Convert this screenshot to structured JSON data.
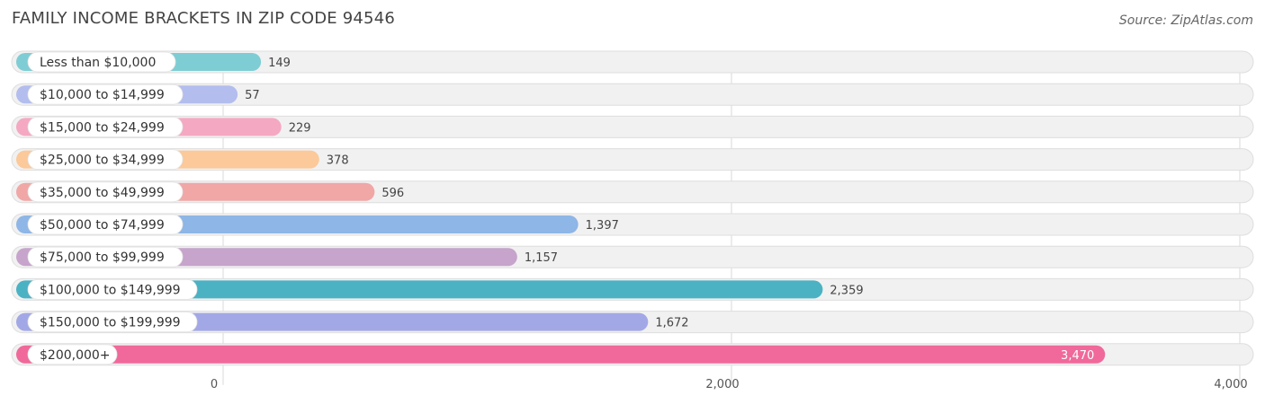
{
  "title": "FAMILY INCOME BRACKETS IN ZIP CODE 94546",
  "source": "Source: ZipAtlas.com",
  "chart_data": {
    "type": "bar",
    "orientation": "horizontal",
    "title": "FAMILY INCOME BRACKETS IN ZIP CODE 94546",
    "categories": [
      "Less than $10,000",
      "$10,000 to $14,999",
      "$15,000 to $24,999",
      "$25,000 to $34,999",
      "$35,000 to $49,999",
      "$50,000 to $74,999",
      "$75,000 to $99,999",
      "$100,000 to $149,999",
      "$150,000 to $199,999",
      "$200,000+"
    ],
    "values": [
      149,
      57,
      229,
      378,
      596,
      1397,
      1157,
      2359,
      1672,
      3470
    ],
    "value_labels": [
      "149",
      "57",
      "229",
      "378",
      "596",
      "1,397",
      "1,157",
      "2,359",
      "1,672",
      "3,470"
    ],
    "colors": [
      "#7fcdd4",
      "#b3bdee",
      "#f5a8c2",
      "#fbc99a",
      "#f0a7a6",
      "#8eb6e6",
      "#c6a4cb",
      "#4bb2c3",
      "#a2a8e6",
      "#f0699a"
    ],
    "xlim": [
      0,
      4000
    ],
    "xticks": [
      0,
      2000,
      4000
    ],
    "xtick_labels": [
      "0",
      "2,000",
      "4,000"
    ],
    "grid": true,
    "legend": "none"
  }
}
